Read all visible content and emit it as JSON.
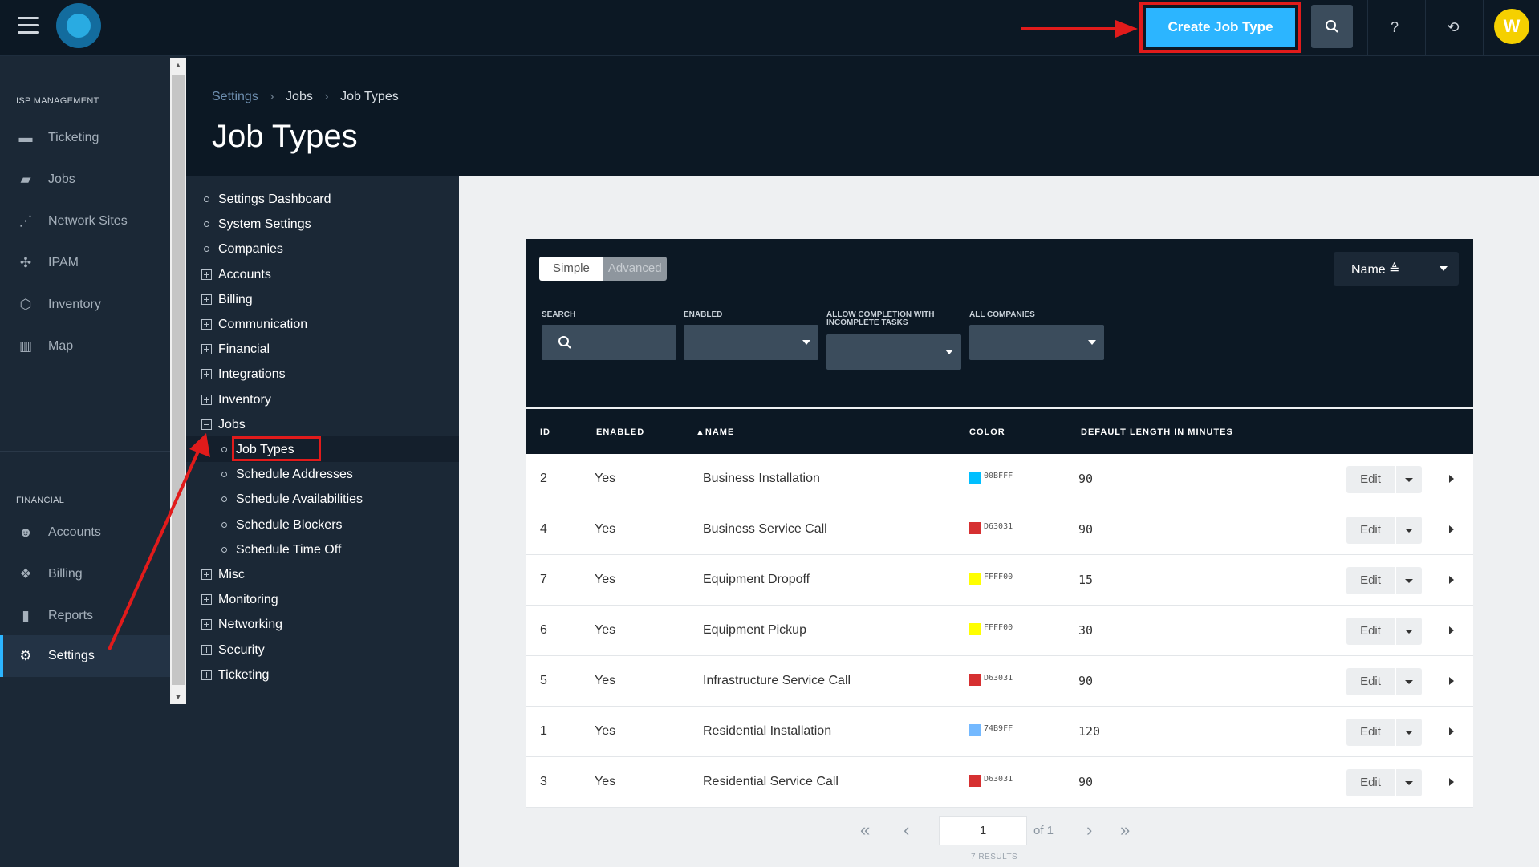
{
  "topbar": {
    "create_label": "Create Job Type",
    "help_glyph": "?",
    "refresh_glyph": "⟲",
    "avatar_initial": "W",
    "accent": "#2CB5FF",
    "annotation_color": "#E11B1B"
  },
  "leftnav": {
    "sections": [
      {
        "title": "ISP MANAGEMENT"
      },
      {
        "title": "FINANCIAL"
      }
    ],
    "items": [
      {
        "label": "Ticketing",
        "icon": "ticket-icon",
        "glyph": "▬"
      },
      {
        "label": "Jobs",
        "icon": "briefcase-icon",
        "glyph": "▰"
      },
      {
        "label": "Network Sites",
        "icon": "network-icon",
        "glyph": "⋰"
      },
      {
        "label": "IPAM",
        "icon": "ipam-icon",
        "glyph": "✣"
      },
      {
        "label": "Inventory",
        "icon": "box-icon",
        "glyph": "⬡"
      },
      {
        "label": "Map",
        "icon": "map-icon",
        "glyph": "▥"
      },
      {
        "label": "Accounts",
        "icon": "users-icon",
        "glyph": "☻"
      },
      {
        "label": "Billing",
        "icon": "coins-icon",
        "glyph": "❖"
      },
      {
        "label": "Reports",
        "icon": "bar-chart-icon",
        "glyph": "▮"
      },
      {
        "label": "Settings",
        "icon": "gear-icon",
        "glyph": "⚙"
      }
    ]
  },
  "header": {
    "breadcrumb": [
      "Settings",
      "Jobs",
      "Job Types"
    ],
    "title": "Job Types"
  },
  "tree": {
    "items": [
      {
        "label": "Settings Dashboard"
      },
      {
        "label": "System Settings"
      },
      {
        "label": "Companies"
      },
      {
        "label": "Accounts"
      },
      {
        "label": "Billing"
      },
      {
        "label": "Communication"
      },
      {
        "label": "Financial"
      },
      {
        "label": "Integrations"
      },
      {
        "label": "Inventory"
      },
      {
        "label": "Jobs"
      },
      {
        "label": "Job Types"
      },
      {
        "label": "Schedule Addresses"
      },
      {
        "label": "Schedule Availabilities"
      },
      {
        "label": "Schedule Blockers"
      },
      {
        "label": "Schedule Time Off"
      },
      {
        "label": "Misc"
      },
      {
        "label": "Monitoring"
      },
      {
        "label": "Networking"
      },
      {
        "label": "Security"
      },
      {
        "label": "Ticketing"
      }
    ]
  },
  "filters": {
    "mode_simple": "Simple",
    "mode_advanced": "Advanced",
    "sort_label": "Name ≜",
    "search_label": "SEARCH",
    "enabled_label": "ENABLED",
    "allow_label_1": "ALLOW COMPLETION WITH",
    "allow_label_2": "INCOMPLETE TASKS",
    "companies_label": "ALL COMPANIES"
  },
  "table": {
    "columns": [
      "ID",
      "ENABLED",
      "▲NAME",
      "COLOR",
      "DEFAULT LENGTH IN MINUTES"
    ],
    "edit_label": "Edit",
    "rows": [
      {
        "id": "2",
        "enabled": "Yes",
        "name": "Business Installation",
        "color": "#00BFFF",
        "hex": "00BFFF",
        "minutes": "90"
      },
      {
        "id": "4",
        "enabled": "Yes",
        "name": "Business Service Call",
        "color": "#D63031",
        "hex": "D63031",
        "minutes": "90"
      },
      {
        "id": "7",
        "enabled": "Yes",
        "name": "Equipment Dropoff",
        "color": "#FFFF00",
        "hex": "FFFF00",
        "minutes": "15"
      },
      {
        "id": "6",
        "enabled": "Yes",
        "name": "Equipment Pickup",
        "color": "#FFFF00",
        "hex": "FFFF00",
        "minutes": "30"
      },
      {
        "id": "5",
        "enabled": "Yes",
        "name": "Infrastructure Service Call",
        "color": "#D63031",
        "hex": "D63031",
        "minutes": "90"
      },
      {
        "id": "1",
        "enabled": "Yes",
        "name": "Residential Installation",
        "color": "#74B9FF",
        "hex": "74B9FF",
        "minutes": "120"
      },
      {
        "id": "3",
        "enabled": "Yes",
        "name": "Residential Service Call",
        "color": "#D63031",
        "hex": "D63031",
        "minutes": "90"
      }
    ]
  },
  "pager": {
    "page": "1",
    "of": "of 1",
    "results": "7 RESULTS"
  }
}
